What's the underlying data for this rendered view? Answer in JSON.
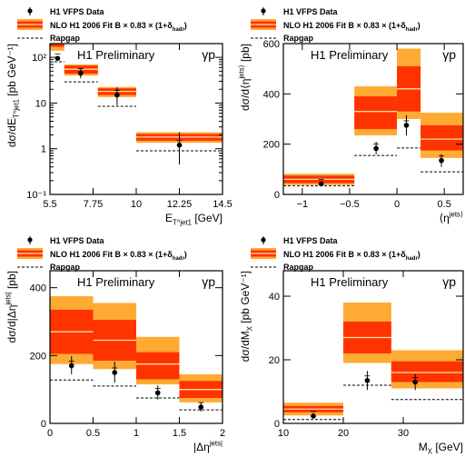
{
  "colors": {
    "nlo_inner": "#ff3300",
    "nlo_outer": "#ffaa33",
    "nlo_line": "#ffe0a0",
    "data_marker": "#000000",
    "rapgap": "#000000"
  },
  "legend": {
    "data": "H1 VFPS Data",
    "nlo": "NLO H1 2006 Fit B × 0.83 × (1+δ",
    "nlo_sub": "hadr",
    "nlo_close": ")",
    "rapgap": "Rapgap"
  },
  "chart_data": [
    {
      "type": "bar",
      "panel": "top-left",
      "title": "H1 Preliminary",
      "tag": "γp",
      "log_y": true,
      "xlim": [
        5.5,
        14.5
      ],
      "ylim": [
        0.1,
        200
      ],
      "xticks": [
        5.5,
        7.75,
        10,
        12.25,
        14.5
      ],
      "xtick_labels": [
        "5.5",
        "7.75",
        "10",
        "12.25",
        "14.5"
      ],
      "yticks": [
        0.1,
        1,
        10,
        100
      ],
      "ytick_labels": [
        "10⁻¹",
        "1",
        "10",
        "10²"
      ],
      "xlabel": "E_T^jet1 [GeV]",
      "ylabel": "dσ/dE_T^jet1 [pb GeV⁻¹]",
      "bins": [
        [
          5.5,
          6.25
        ],
        [
          6.25,
          8
        ],
        [
          8,
          10
        ],
        [
          10,
          14.5
        ]
      ],
      "nlo": {
        "central": [
          205,
          55,
          18,
          1.8
        ],
        "inner": [
          [
            170,
            245
          ],
          [
            44,
            66
          ],
          [
            15,
            21
          ],
          [
            1.5,
            2.1
          ]
        ],
        "outer": [
          [
            140,
            260
          ],
          [
            40,
            70
          ],
          [
            13.5,
            22.5
          ],
          [
            1.35,
            2.3
          ]
        ]
      },
      "data": {
        "x": [
          5.9,
          7.1,
          9.0,
          12.25
        ],
        "y": [
          95,
          45,
          15,
          1.2
        ],
        "err": [
          [
            88,
            102
          ],
          [
            35,
            56
          ],
          [
            9,
            22
          ],
          [
            0.45,
            2.3
          ]
        ]
      },
      "rapgap": [
        80,
        29,
        8.5,
        0.9
      ]
    },
    {
      "type": "bar",
      "panel": "top-right",
      "title": "H1 Preliminary",
      "tag": "γp",
      "log_y": false,
      "xlim": [
        -1.2,
        0.7
      ],
      "ylim": [
        0,
        600
      ],
      "xticks": [
        -1,
        -0.5,
        0,
        0.5
      ],
      "xtick_labels": [
        "−1",
        "−0.5",
        "0",
        "0.5"
      ],
      "yticks": [
        0,
        200,
        400,
        600
      ],
      "ytick_labels": [
        "0",
        "200",
        "400",
        "600"
      ],
      "xlabel": "⟨η^jets⟩",
      "ylabel": "dσ/d⟨η^jets⟩ [pb]",
      "bins": [
        [
          -1.2,
          -0.45
        ],
        [
          -0.45,
          0
        ],
        [
          0,
          0.25
        ],
        [
          0.25,
          0.7
        ]
      ],
      "nlo": {
        "central": [
          60,
          330,
          420,
          220
        ],
        "inner": [
          [
            45,
            75
          ],
          [
            260,
            390
          ],
          [
            330,
            510
          ],
          [
            175,
            275
          ]
        ],
        "outer": [
          [
            38,
            82
          ],
          [
            235,
            430
          ],
          [
            300,
            580
          ],
          [
            145,
            325
          ]
        ]
      },
      "data": {
        "x": [
          -0.8,
          -0.22,
          0.1,
          0.47
        ],
        "y": [
          42,
          183,
          275,
          135
        ],
        "err": [
          [
            32,
            52
          ],
          [
            160,
            210
          ],
          [
            235,
            315
          ],
          [
            110,
            160
          ]
        ]
      },
      "rapgap": [
        35,
        155,
        185,
        90
      ]
    },
    {
      "type": "bar",
      "panel": "bottom-left",
      "title": "H1 Preliminary",
      "tag": "γp",
      "log_y": false,
      "xlim": [
        0,
        2
      ],
      "ylim": [
        0,
        450
      ],
      "xticks": [
        0,
        0.5,
        1,
        1.5,
        2
      ],
      "xtick_labels": [
        "0",
        "0.5",
        "1",
        "1.5",
        "2"
      ],
      "yticks": [
        0,
        200,
        400
      ],
      "ytick_labels": [
        "0",
        "200",
        "400"
      ],
      "xlabel": "|Δη^jets|",
      "ylabel": "dσ/d|Δη^jets| [pb]",
      "bins": [
        [
          0,
          0.5
        ],
        [
          0.5,
          1
        ],
        [
          1,
          1.5
        ],
        [
          1.5,
          2
        ]
      ],
      "nlo": {
        "central": [
          270,
          245,
          175,
          100
        ],
        "inner": [
          [
            205,
            335
          ],
          [
            185,
            305
          ],
          [
            130,
            210
          ],
          [
            75,
            125
          ]
        ],
        "outer": [
          [
            175,
            375
          ],
          [
            160,
            355
          ],
          [
            115,
            255
          ],
          [
            62,
            145
          ]
        ]
      },
      "data": {
        "x": [
          0.25,
          0.75,
          1.25,
          1.75
        ],
        "y": [
          170,
          150,
          90,
          48
        ],
        "err": [
          [
            145,
            198
          ],
          [
            120,
            182
          ],
          [
            70,
            112
          ],
          [
            35,
            62
          ]
        ]
      },
      "rapgap": [
        128,
        110,
        75,
        40
      ]
    },
    {
      "type": "bar",
      "panel": "bottom-right",
      "title": "H1 Preliminary",
      "tag": "γp",
      "log_y": false,
      "xlim": [
        10,
        40
      ],
      "ylim": [
        0,
        48
      ],
      "xticks": [
        10,
        20,
        30
      ],
      "xtick_labels": [
        "10",
        "20",
        "30"
      ],
      "yticks": [
        0,
        20,
        40
      ],
      "ytick_labels": [
        "0",
        "20",
        "40"
      ],
      "xlabel": "M_X [GeV]",
      "ylabel": "dσ/dM_X [pb GeV⁻¹]",
      "bins": [
        [
          10,
          20
        ],
        [
          20,
          28
        ],
        [
          28,
          40
        ]
      ],
      "nlo": {
        "central": [
          4.5,
          27,
          16
        ],
        "inner": [
          [
            3.5,
            5.5
          ],
          [
            22,
            32
          ],
          [
            13,
            19.5
          ]
        ],
        "outer": [
          [
            2.5,
            6.5
          ],
          [
            19,
            38
          ],
          [
            11,
            23
          ]
        ]
      },
      "data": {
        "x": [
          15,
          24,
          32
        ],
        "y": [
          2.3,
          13.5,
          13
        ],
        "err": [
          [
            1.5,
            3.2
          ],
          [
            10.5,
            16.5
          ],
          [
            10.5,
            15.5
          ]
        ]
      },
      "rapgap": [
        1.2,
        12,
        7.5
      ]
    }
  ]
}
